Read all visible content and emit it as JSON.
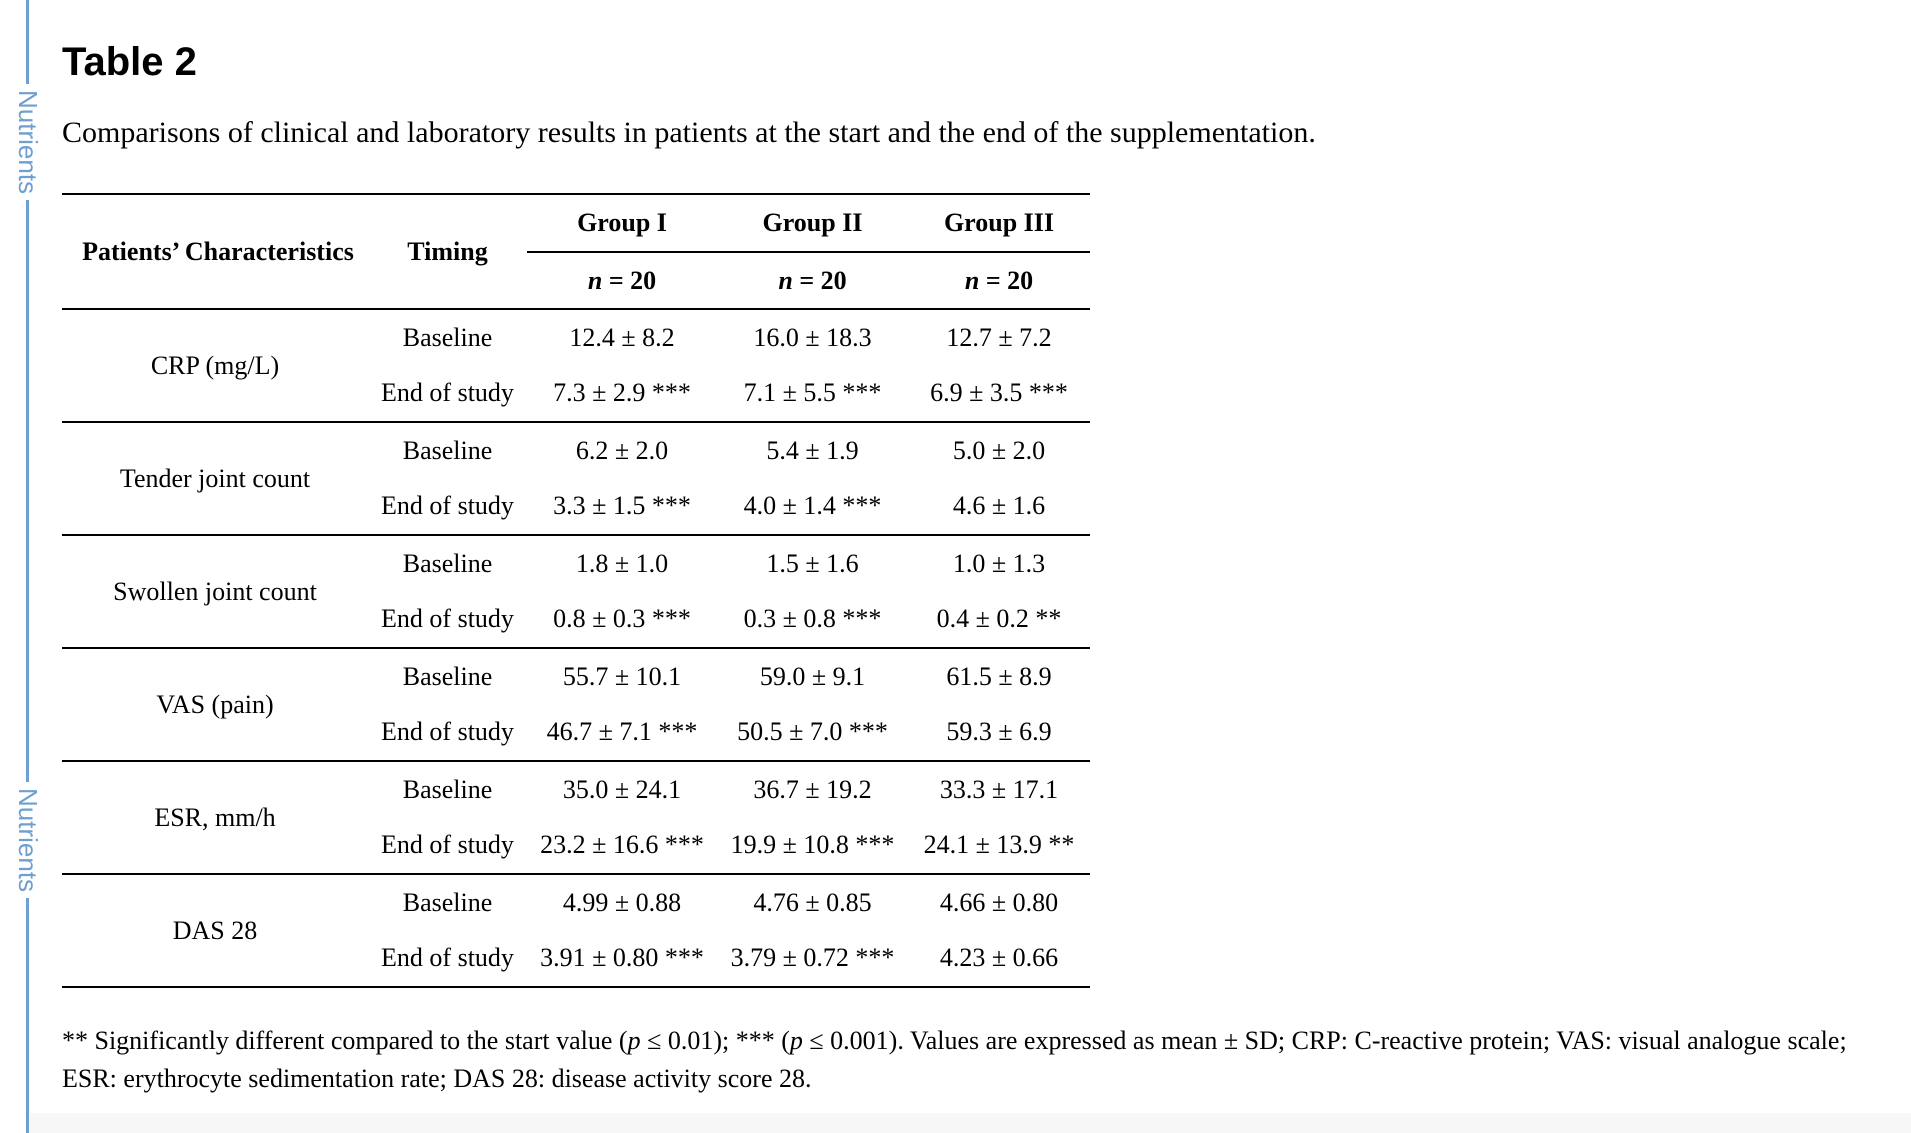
{
  "sidebar": {
    "label_top": "Nutrients",
    "label_bottom": "Nutrients",
    "accent_color": "#6e9fd0"
  },
  "title": "Table 2",
  "caption": "Comparisons of clinical and laboratory results in patients at the start and the end of the supplementation.",
  "table": {
    "header": {
      "characteristics": "Patients’ Characteristics",
      "timing": "Timing",
      "groups": [
        {
          "name": "Group I",
          "n_symbol": "n",
          "n_value": " = 20"
        },
        {
          "name": "Group II",
          "n_symbol": "n",
          "n_value": " = 20"
        },
        {
          "name": "Group III",
          "n_symbol": "n",
          "n_value": " = 20"
        }
      ]
    },
    "rows": [
      {
        "label": "CRP (mg/L)",
        "baseline": {
          "timing": "Baseline",
          "values": [
            "12.4 ± 8.2",
            "16.0 ± 18.3",
            "12.7 ± 7.2"
          ]
        },
        "end": {
          "timing": "End of study",
          "values": [
            "7.3 ± 2.9 ***",
            "7.1 ± 5.5 ***",
            "6.9 ± 3.5 ***"
          ]
        }
      },
      {
        "label": "Tender joint count",
        "baseline": {
          "timing": "Baseline",
          "values": [
            "6.2 ± 2.0",
            "5.4 ± 1.9",
            "5.0 ± 2.0"
          ]
        },
        "end": {
          "timing": "End of study",
          "values": [
            "3.3 ± 1.5 ***",
            "4.0 ± 1.4 ***",
            "4.6 ± 1.6"
          ]
        }
      },
      {
        "label": "Swollen joint count",
        "baseline": {
          "timing": "Baseline",
          "values": [
            "1.8 ± 1.0",
            "1.5 ± 1.6",
            "1.0 ± 1.3"
          ]
        },
        "end": {
          "timing": "End of study",
          "values": [
            "0.8 ± 0.3 ***",
            "0.3 ± 0.8 ***",
            "0.4 ± 0.2 **"
          ]
        }
      },
      {
        "label": "VAS (pain)",
        "baseline": {
          "timing": "Baseline",
          "values": [
            "55.7 ± 10.1",
            "59.0 ± 9.1",
            "61.5 ± 8.9"
          ]
        },
        "end": {
          "timing": "End of study",
          "values": [
            "46.7 ± 7.1 ***",
            "50.5 ± 7.0 ***",
            "59.3 ± 6.9"
          ]
        }
      },
      {
        "label": "ESR, mm/h",
        "baseline": {
          "timing": "Baseline",
          "values": [
            "35.0 ± 24.1",
            "36.7 ± 19.2",
            "33.3 ± 17.1"
          ]
        },
        "end": {
          "timing": "End of study",
          "values": [
            "23.2 ± 16.6 ***",
            "19.9 ± 10.8 ***",
            "24.1 ± 13.9 **"
          ]
        }
      },
      {
        "label": "DAS 28",
        "baseline": {
          "timing": "Baseline",
          "values": [
            "4.99 ± 0.88",
            "4.76 ± 0.85",
            "4.66 ± 0.80"
          ]
        },
        "end": {
          "timing": "End of study",
          "values": [
            "3.91 ± 0.80 ***",
            "3.79 ± 0.72 ***",
            "4.23 ± 0.66"
          ]
        }
      }
    ]
  },
  "footnote": {
    "part1": "** Significantly different compared to the start value (",
    "p1": "p",
    "part2": " ≤ 0.01); *** (",
    "p2": "p",
    "part3": " ≤ 0.001). Values are expressed as mean ± SD; CRP: C-reactive protein; VAS: visual analogue scale; ESR: erythrocyte sedimentation rate; DAS 28: disease activity score 28."
  }
}
